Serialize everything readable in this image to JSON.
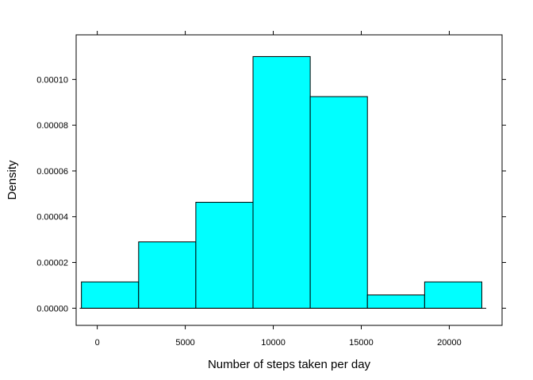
{
  "chart_data": {
    "type": "bar",
    "subtype": "histogram",
    "xlabel": "Number of steps taken per day",
    "ylabel": "Density",
    "xlim": [
      -1200,
      23000
    ],
    "ylim": [
      -7.5e-06,
      0.0001195
    ],
    "x_ticks": [
      0,
      5000,
      10000,
      15000,
      20000
    ],
    "x_tick_labels": [
      "0",
      "5000",
      "10000",
      "15000",
      "20000"
    ],
    "y_ticks": [
      0,
      2e-05,
      4e-05,
      6e-05,
      8e-05,
      0.0001
    ],
    "y_tick_labels": [
      "0.00000",
      "0.00002",
      "0.00004",
      "0.00006",
      "0.00008",
      "0.00010"
    ],
    "bins": [
      {
        "x0": -900,
        "x1": 2350,
        "density": 1.15e-05
      },
      {
        "x0": 2350,
        "x1": 5600,
        "density": 2.9e-05
      },
      {
        "x0": 5600,
        "x1": 8850,
        "density": 4.63e-05
      },
      {
        "x0": 8850,
        "x1": 12100,
        "density": 0.00011
      },
      {
        "x0": 12100,
        "x1": 15350,
        "density": 9.25e-05
      },
      {
        "x0": 15350,
        "x1": 18600,
        "density": 5.8e-06
      },
      {
        "x0": 18600,
        "x1": 21850,
        "density": 1.15e-05
      }
    ],
    "baseline_range": [
      -1000,
      22100
    ],
    "fill_color": "#00ffff",
    "stroke_color": "#000000",
    "grid": false,
    "legend": "none"
  }
}
